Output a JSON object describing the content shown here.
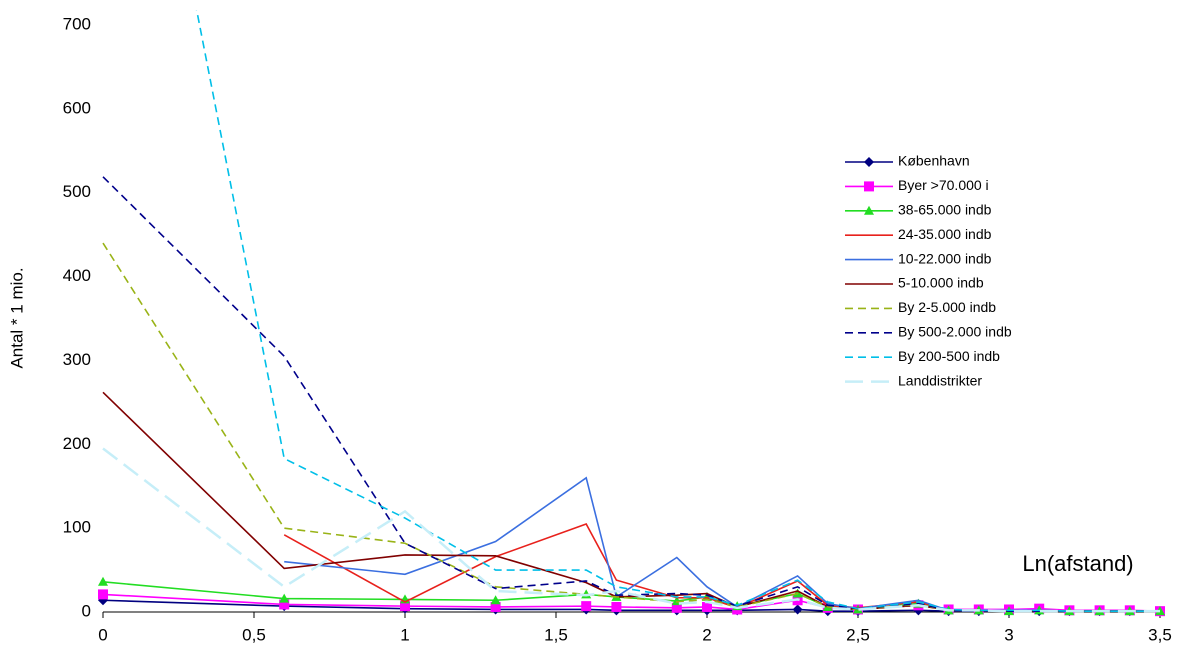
{
  "chart_data": {
    "type": "line",
    "y_label": "Antal * 1 mio.",
    "annotation": "Ln(afstand)",
    "x": [
      0,
      0.6,
      1,
      1.3,
      1.6,
      1.7,
      1.9,
      2,
      2.1,
      2.3,
      2.4,
      2.5,
      2.7,
      2.8,
      2.9,
      3,
      3.1,
      3.2,
      3.3,
      3.4,
      3.5
    ],
    "xlim": [
      0,
      3.5
    ],
    "xticks": [
      0,
      {
        "value": 0.5,
        "label": "0,5"
      },
      1,
      {
        "value": 1.5,
        "label": "1,5"
      },
      2,
      {
        "value": 2.5,
        "label": "2,5"
      },
      3,
      {
        "value": 3.5,
        "label": "3,5"
      }
    ],
    "ylim": [
      0,
      700
    ],
    "yticks": [
      0,
      100,
      200,
      300,
      400,
      500,
      600,
      700
    ],
    "grid": false,
    "legend": "right",
    "series": [
      {
        "name": "København",
        "color": "#000080",
        "style": "solid",
        "marker": "diamond",
        "values": [
          14,
          7,
          4,
          3,
          3,
          2,
          2,
          2,
          2,
          3,
          1,
          1,
          2,
          1,
          1,
          1,
          1,
          1,
          1,
          1,
          1
        ]
      },
      {
        "name": "Byer >70.000 i",
        "color": "#ff00ff",
        "style": "solid",
        "marker": "square",
        "values": [
          21,
          9,
          7,
          6,
          7,
          6,
          5,
          6,
          3,
          14,
          5,
          3,
          8,
          3,
          3,
          3,
          4,
          2,
          2,
          2,
          1
        ]
      },
      {
        "name": "38-65.000 indb",
        "color": "#22dd22",
        "style": "solid",
        "marker": "triangle",
        "values": [
          36,
          16,
          15,
          14,
          21,
          18,
          13,
          18,
          7,
          22,
          6,
          3,
          10,
          2,
          2,
          1,
          2,
          1,
          1,
          1,
          1
        ]
      },
      {
        "name": "24-35.000 indb",
        "color": "#e8211c",
        "style": "solid",
        "values": [
          null,
          92,
          12,
          66,
          105,
          38,
          17,
          17,
          5,
          37,
          8,
          5,
          12,
          2,
          2,
          2,
          2,
          1,
          1,
          1,
          1
        ]
      },
      {
        "name": "10-22.000 indb",
        "color": "#3b6fe0",
        "style": "solid",
        "values": [
          null,
          60,
          45,
          84,
          160,
          18,
          65,
          30,
          6,
          43,
          10,
          4,
          14,
          2,
          2,
          2,
          2,
          1,
          1,
          1,
          1
        ]
      },
      {
        "name": "5-10.000 indb",
        "color": "#800000",
        "style": "solid",
        "values": [
          262,
          52,
          68,
          67,
          35,
          18,
          20,
          22,
          6,
          25,
          6,
          3,
          8,
          2,
          2,
          1,
          1,
          1,
          1,
          1,
          1
        ]
      },
      {
        "name": "By 2-5.000 indb",
        "color": "#99b317",
        "style": "dashed",
        "values": [
          440,
          100,
          82,
          30,
          21,
          18,
          12,
          15,
          6,
          22,
          6,
          3,
          9,
          2,
          2,
          1,
          1,
          1,
          1,
          1,
          1
        ]
      },
      {
        "name": "By 500-2.000 indb",
        "color": "#00008b",
        "style": "dashed",
        "values": [
          519,
          305,
          82,
          28,
          37,
          20,
          22,
          20,
          7,
          30,
          8,
          4,
          10,
          2,
          2,
          1,
          1,
          1,
          1,
          1,
          1
        ]
      },
      {
        "name": "By 200-500 indb",
        "color": "#00bfe8",
        "style": "dashed",
        "values": [
          1290,
          183,
          112,
          50,
          50,
          30,
          18,
          18,
          8,
          38,
          12,
          4,
          12,
          3,
          2,
          2,
          2,
          1,
          1,
          1,
          1
        ]
      },
      {
        "name": "Landdistrikter",
        "color": "#c6eef8",
        "style": "longdash",
        "values": [
          195,
          30,
          120,
          25,
          20,
          25,
          10,
          12,
          5,
          15,
          5,
          3,
          8,
          2,
          2,
          1,
          1,
          1,
          1,
          1,
          1
        ]
      }
    ]
  }
}
